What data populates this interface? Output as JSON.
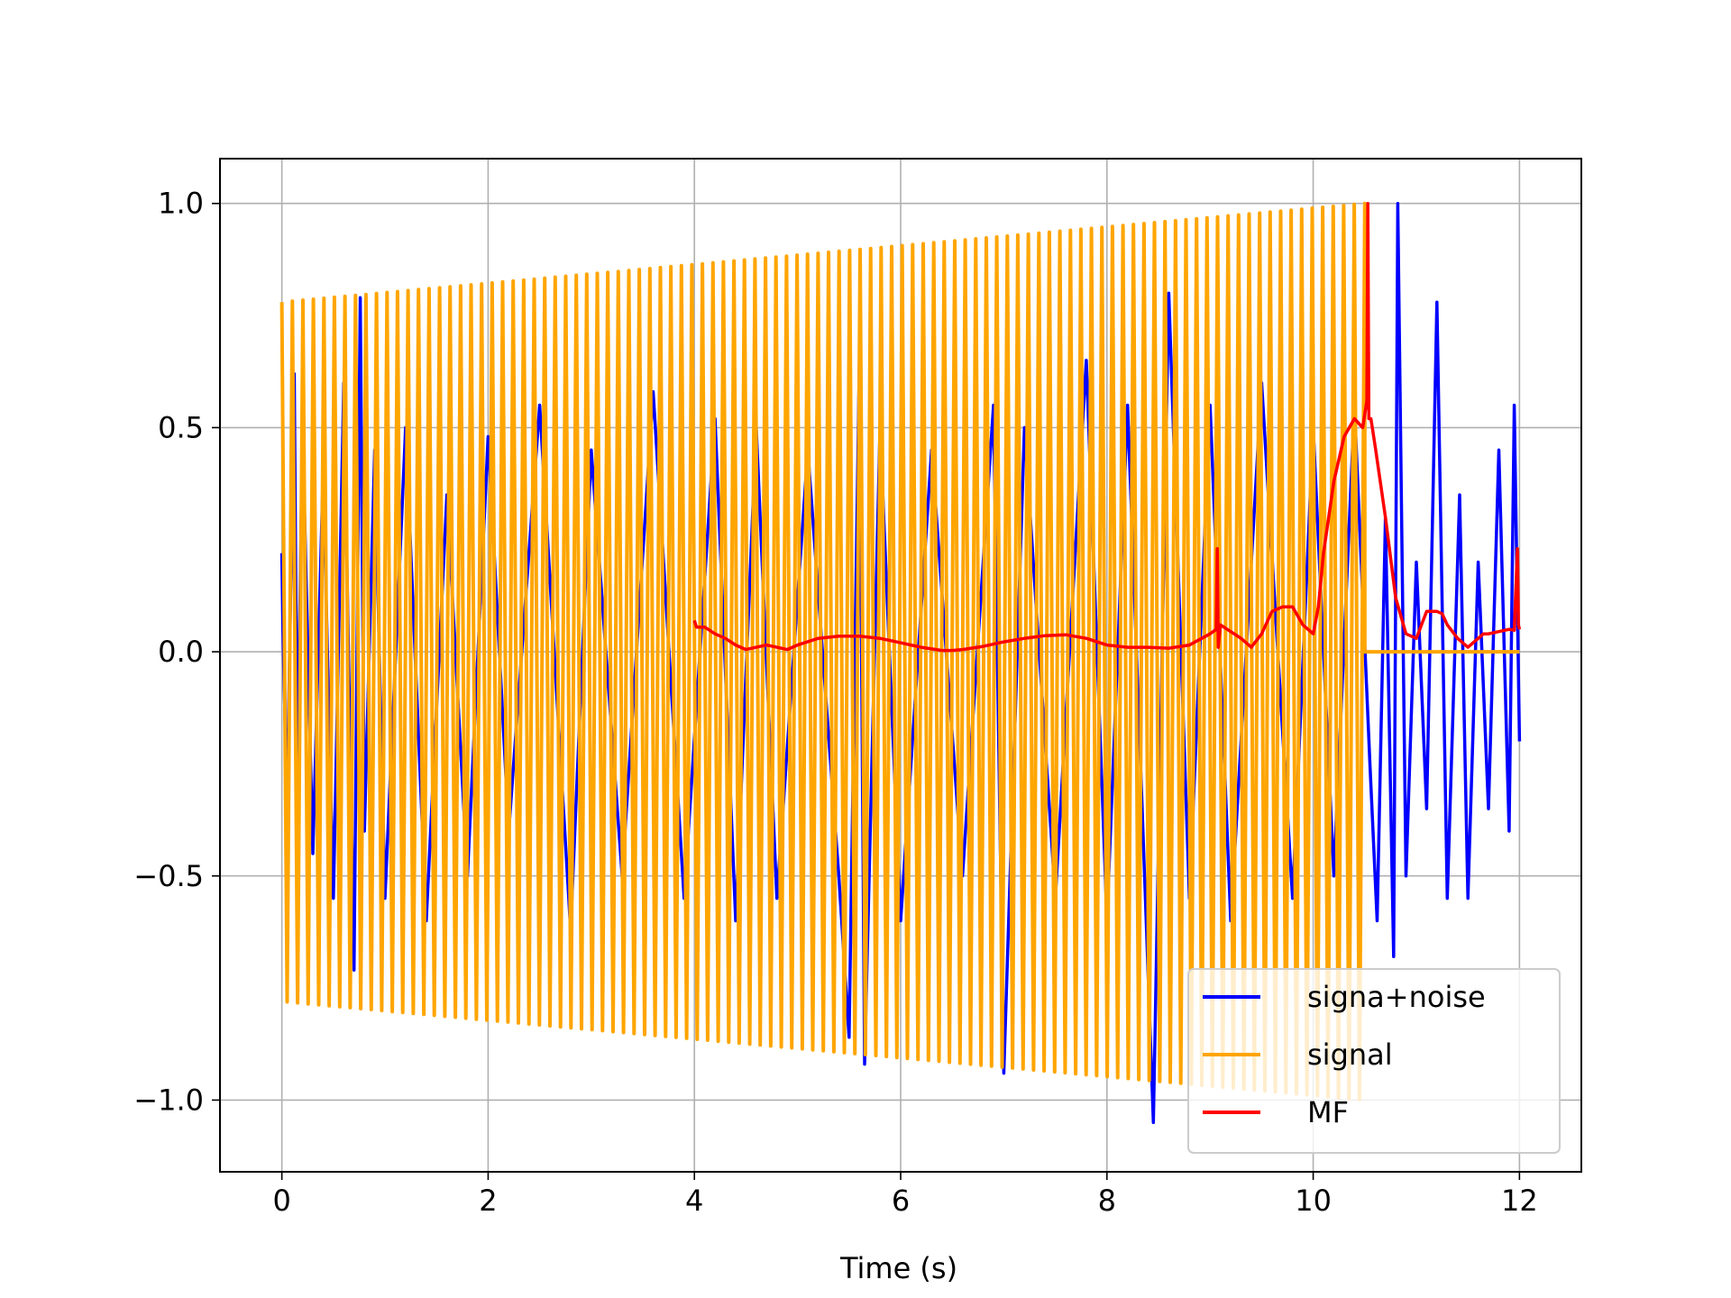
{
  "chart_data": {
    "type": "line",
    "title": "",
    "xlabel": "Time (s)",
    "ylabel": "",
    "xlim": [
      -0.6,
      12.6
    ],
    "ylim": [
      -1.16,
      1.1
    ],
    "grid": true,
    "xticks": [
      0,
      2,
      4,
      6,
      8,
      10,
      12
    ],
    "xtick_labels": [
      "0",
      "2",
      "4",
      "6",
      "8",
      "10",
      "12"
    ],
    "yticks": [
      1.0,
      0.5,
      0.0,
      -0.5,
      -1.0
    ],
    "ytick_labels": [
      "1.0",
      "0.5",
      "0.0",
      "−0.5",
      "−1.0"
    ],
    "legend_position": "bottom-right",
    "series": [
      {
        "name": "signa+noise",
        "color": "#0000ff",
        "description": "noisy received signal, 0 to 12 s; strong burst near 10.8 s",
        "x": [
          0.0,
          0.01,
          0.05,
          0.12,
          0.15,
          0.2,
          0.3,
          0.4,
          0.5,
          0.6,
          0.7,
          0.76,
          0.8,
          0.9,
          1.0,
          1.2,
          1.4,
          1.6,
          1.8,
          2.0,
          2.2,
          2.5,
          2.8,
          3.0,
          3.3,
          3.6,
          3.9,
          4.2,
          4.4,
          4.6,
          4.8,
          5.1,
          5.4,
          5.5,
          5.6,
          5.65,
          5.8,
          6.0,
          6.3,
          6.6,
          6.9,
          7.0,
          7.2,
          7.5,
          7.8,
          8.0,
          8.2,
          8.4,
          8.45,
          8.6,
          8.8,
          9.0,
          9.2,
          9.5,
          9.8,
          10.0,
          10.2,
          10.4,
          10.55,
          10.62,
          10.7,
          10.78,
          10.82,
          10.9,
          11.0,
          11.1,
          11.2,
          11.3,
          11.42,
          11.5,
          11.6,
          11.7,
          11.8,
          11.9,
          11.95,
          12.0
        ],
        "y": [
          0.22,
          0.05,
          -0.35,
          0.62,
          -0.3,
          0.5,
          -0.45,
          0.4,
          -0.55,
          0.6,
          -0.71,
          0.79,
          -0.4,
          0.45,
          -0.55,
          0.5,
          -0.6,
          0.35,
          -0.5,
          0.48,
          -0.4,
          0.55,
          -0.62,
          0.45,
          -0.5,
          0.58,
          -0.55,
          0.52,
          -0.6,
          0.5,
          -0.55,
          0.45,
          -0.5,
          -0.86,
          0.65,
          -0.92,
          0.5,
          -0.6,
          0.45,
          -0.5,
          0.55,
          -0.94,
          0.5,
          -0.55,
          0.65,
          -0.6,
          0.55,
          -0.72,
          -1.05,
          0.8,
          -0.55,
          0.55,
          -0.6,
          0.6,
          -0.55,
          0.5,
          -0.5,
          0.55,
          -0.25,
          -0.6,
          0.3,
          -0.68,
          1.0,
          -0.5,
          0.2,
          -0.35,
          0.78,
          -0.55,
          0.35,
          -0.55,
          0.2,
          -0.35,
          0.45,
          -0.4,
          0.55,
          -0.2
        ]
      },
      {
        "name": "signal",
        "color": "#ffa500",
        "description": "chirp signal with amplitude rising from ~0.78 at 0 s to ~1.0 at 10.5 s, then 0 until 12 s",
        "x": [
          0.0,
          10.5,
          10.5,
          12.0
        ],
        "amplitude": [
          0.78,
          1.0,
          0.0,
          0.0
        ],
        "cycles": 103
      },
      {
        "name": "MF",
        "color": "#ff0000",
        "description": "matched filter output, defined from 4 to 12 s; peak 1.0 at 10.53 s",
        "x": [
          4.0,
          4.02,
          4.1,
          4.2,
          4.3,
          4.4,
          4.5,
          4.6,
          4.7,
          4.8,
          4.9,
          5.0,
          5.2,
          5.4,
          5.6,
          5.8,
          6.0,
          6.2,
          6.4,
          6.5,
          6.6,
          6.8,
          7.0,
          7.2,
          7.4,
          7.6,
          7.8,
          8.0,
          8.2,
          8.4,
          8.6,
          8.8,
          9.0,
          9.06,
          9.07,
          9.08,
          9.1,
          9.2,
          9.3,
          9.4,
          9.5,
          9.6,
          9.7,
          9.8,
          9.9,
          10.0,
          10.05,
          10.1,
          10.2,
          10.3,
          10.4,
          10.48,
          10.52,
          10.53,
          10.54,
          10.56,
          10.6,
          10.7,
          10.8,
          10.9,
          11.0,
          11.05,
          11.1,
          11.2,
          11.25,
          11.3,
          11.4,
          11.5,
          11.6,
          11.65,
          11.7,
          11.8,
          11.9,
          11.95,
          11.98,
          11.99,
          12.0
        ],
        "y": [
          0.07,
          0.055,
          0.055,
          0.04,
          0.03,
          0.015,
          0.005,
          0.01,
          0.015,
          0.01,
          0.005,
          0.015,
          0.03,
          0.035,
          0.035,
          0.03,
          0.02,
          0.01,
          0.003,
          0.003,
          0.005,
          0.012,
          0.022,
          0.03,
          0.036,
          0.038,
          0.03,
          0.015,
          0.01,
          0.01,
          0.008,
          0.015,
          0.04,
          0.05,
          0.23,
          0.01,
          0.06,
          0.045,
          0.03,
          0.01,
          0.04,
          0.09,
          0.1,
          0.1,
          0.06,
          0.04,
          0.1,
          0.22,
          0.38,
          0.48,
          0.52,
          0.5,
          0.56,
          1.0,
          0.52,
          0.52,
          0.46,
          0.3,
          0.12,
          0.04,
          0.03,
          0.06,
          0.09,
          0.09,
          0.085,
          0.06,
          0.03,
          0.01,
          0.03,
          0.04,
          0.04,
          0.045,
          0.05,
          0.048,
          0.23,
          0.06,
          0.05
        ]
      }
    ]
  }
}
